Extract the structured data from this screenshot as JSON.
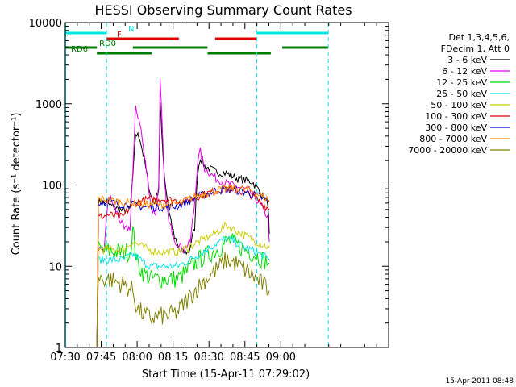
{
  "chart_data": {
    "type": "line",
    "title": "HESSI Observing Summary Count Rates",
    "xlabel": "Start Time (15-Apr-11 07:29:02)",
    "ylabel": "Count Rate (s⁻¹ detector⁻¹)",
    "y_scale": "log",
    "ylim": [
      1,
      10000
    ],
    "xlim_minutes": [
      7.5,
      9.75
    ],
    "x_ticks": [
      "07:30",
      "07:45",
      "08:00",
      "08:15",
      "08:30",
      "08:45",
      "09:00"
    ],
    "y_ticks": [
      "1",
      "10",
      "100",
      "1000",
      "10000"
    ],
    "legend_header": [
      "Det 1,3,4,5,6,",
      "FDecim 1, Att 0"
    ],
    "timestamp": "15-Apr-2011 08:48",
    "flags": [
      {
        "label": "N",
        "color": "#00e5e5",
        "segments": [
          [
            7.5,
            7.787
          ],
          [
            8.833,
            9.33
          ]
        ]
      },
      {
        "label": "F",
        "color": "#e00000",
        "segments": [
          [
            7.787,
            8.29
          ],
          [
            8.543,
            8.833
          ]
        ]
      },
      {
        "label": "RD0",
        "color": "#007a00",
        "segments": [
          [
            7.5,
            7.72
          ],
          [
            7.97,
            8.49
          ],
          [
            9.01,
            9.33
          ]
        ]
      },
      {
        "label": "RD6",
        "color": "#007a00",
        "segments": [
          [
            7.72,
            8.1
          ],
          [
            8.49,
            8.93
          ]
        ]
      }
    ],
    "vlines": [
      7.5,
      7.787,
      8.833,
      9.33
    ],
    "series": [
      {
        "name": "3 - 6 keV",
        "color": "#000000",
        "points": [
          [
            7.72,
            1
          ],
          [
            7.73,
            63
          ],
          [
            7.78,
            60
          ],
          [
            7.85,
            52
          ],
          [
            7.9,
            48
          ],
          [
            7.95,
            52
          ],
          [
            7.97,
            120
          ],
          [
            7.99,
            430
          ],
          [
            8.02,
            380
          ],
          [
            8.05,
            200
          ],
          [
            8.08,
            100
          ],
          [
            8.1,
            70
          ],
          [
            8.12,
            60
          ],
          [
            8.15,
            90
          ],
          [
            8.16,
            1000
          ],
          [
            8.17,
            480
          ],
          [
            8.19,
            130
          ],
          [
            8.22,
            50
          ],
          [
            8.26,
            22
          ],
          [
            8.3,
            15
          ],
          [
            8.36,
            15
          ],
          [
            8.4,
            30
          ],
          [
            8.42,
            140
          ],
          [
            8.44,
            220
          ],
          [
            8.47,
            170
          ],
          [
            8.55,
            145
          ],
          [
            8.62,
            140
          ],
          [
            8.7,
            120
          ],
          [
            8.8,
            110
          ],
          [
            8.85,
            85
          ],
          [
            8.91,
            60
          ],
          [
            8.92,
            25
          ]
        ]
      },
      {
        "name": "6 - 12 keV",
        "color": "#e000e0",
        "points": [
          [
            7.72,
            1
          ],
          [
            7.73,
            15
          ],
          [
            7.77,
            16
          ],
          [
            7.8,
            75
          ],
          [
            7.83,
            60
          ],
          [
            7.86,
            45
          ],
          [
            7.91,
            28
          ],
          [
            7.95,
            30
          ],
          [
            7.97,
            150
          ],
          [
            7.99,
            860
          ],
          [
            8.02,
            600
          ],
          [
            8.05,
            230
          ],
          [
            8.08,
            95
          ],
          [
            8.1,
            50
          ],
          [
            8.13,
            45
          ],
          [
            8.15,
            100
          ],
          [
            8.16,
            1900
          ],
          [
            8.17,
            800
          ],
          [
            8.19,
            100
          ],
          [
            8.22,
            35
          ],
          [
            8.27,
            20
          ],
          [
            8.32,
            16
          ],
          [
            8.37,
            20
          ],
          [
            8.4,
            60
          ],
          [
            8.42,
            190
          ],
          [
            8.44,
            260
          ],
          [
            8.47,
            160
          ],
          [
            8.55,
            120
          ],
          [
            8.62,
            105
          ],
          [
            8.7,
            95
          ],
          [
            8.78,
            85
          ],
          [
            8.85,
            60
          ],
          [
            8.91,
            40
          ],
          [
            8.92,
            20
          ]
        ]
      },
      {
        "name": "12 - 25 keV",
        "color": "#00dd00",
        "points": [
          [
            7.72,
            1
          ],
          [
            7.73,
            16
          ],
          [
            7.85,
            15
          ],
          [
            7.95,
            15
          ],
          [
            7.97,
            28
          ],
          [
            8.0,
            11
          ],
          [
            8.05,
            8
          ],
          [
            8.1,
            7
          ],
          [
            8.16,
            7
          ],
          [
            8.22,
            7
          ],
          [
            8.28,
            7
          ],
          [
            8.33,
            8
          ],
          [
            8.38,
            10
          ],
          [
            8.43,
            12
          ],
          [
            8.5,
            14
          ],
          [
            8.58,
            17
          ],
          [
            8.63,
            21
          ],
          [
            8.68,
            19
          ],
          [
            8.75,
            16
          ],
          [
            8.82,
            14
          ],
          [
            8.88,
            12
          ],
          [
            8.92,
            11
          ]
        ]
      },
      {
        "name": "25 - 50 keV",
        "color": "#00e5e5",
        "points": [
          [
            7.72,
            1
          ],
          [
            7.73,
            12
          ],
          [
            7.8,
            12
          ],
          [
            7.9,
            12
          ],
          [
            7.97,
            14
          ],
          [
            8.0,
            13
          ],
          [
            8.05,
            11
          ],
          [
            8.1,
            10
          ],
          [
            8.2,
            10
          ],
          [
            8.28,
            10
          ],
          [
            8.33,
            11
          ],
          [
            8.4,
            13
          ],
          [
            8.48,
            16
          ],
          [
            8.55,
            19
          ],
          [
            8.62,
            22
          ],
          [
            8.68,
            20
          ],
          [
            8.75,
            17
          ],
          [
            8.83,
            15
          ],
          [
            8.92,
            12
          ]
        ]
      },
      {
        "name": "50 - 100 keV",
        "color": "#cccc00",
        "points": [
          [
            7.72,
            1
          ],
          [
            7.73,
            16
          ],
          [
            7.8,
            16
          ],
          [
            7.9,
            16
          ],
          [
            7.97,
            20
          ],
          [
            8.02,
            18
          ],
          [
            8.08,
            16
          ],
          [
            8.15,
            15
          ],
          [
            8.22,
            15
          ],
          [
            8.28,
            15
          ],
          [
            8.35,
            17
          ],
          [
            8.45,
            21
          ],
          [
            8.55,
            26
          ],
          [
            8.62,
            32
          ],
          [
            8.68,
            28
          ],
          [
            8.75,
            24
          ],
          [
            8.83,
            20
          ],
          [
            8.92,
            17
          ]
        ]
      },
      {
        "name": "100 - 300 keV",
        "color": "#e00000",
        "points": [
          [
            7.72,
            1
          ],
          [
            7.73,
            40
          ],
          [
            7.8,
            43
          ],
          [
            7.9,
            40
          ],
          [
            7.97,
            60
          ],
          [
            8.05,
            65
          ],
          [
            8.15,
            68
          ],
          [
            8.25,
            65
          ],
          [
            8.32,
            62
          ],
          [
            8.4,
            70
          ],
          [
            8.5,
            80
          ],
          [
            8.6,
            90
          ],
          [
            8.7,
            85
          ],
          [
            8.8,
            75
          ],
          [
            8.92,
            50
          ]
        ]
      },
      {
        "name": "300 - 800 keV",
        "color": "#0000cc",
        "points": [
          [
            7.72,
            1
          ],
          [
            7.73,
            60
          ],
          [
            7.8,
            63
          ],
          [
            7.88,
            58
          ],
          [
            7.95,
            58
          ],
          [
            8.0,
            55
          ],
          [
            8.1,
            53
          ],
          [
            8.2,
            53
          ],
          [
            8.28,
            55
          ],
          [
            8.35,
            62
          ],
          [
            8.45,
            75
          ],
          [
            8.55,
            85
          ],
          [
            8.65,
            88
          ],
          [
            8.75,
            82
          ],
          [
            8.85,
            72
          ],
          [
            8.92,
            62
          ]
        ]
      },
      {
        "name": "800 - 7000 keV",
        "color": "#ff8800",
        "points": [
          [
            7.72,
            1
          ],
          [
            7.73,
            68
          ],
          [
            7.8,
            66
          ],
          [
            7.88,
            62
          ],
          [
            7.95,
            60
          ],
          [
            8.05,
            58
          ],
          [
            8.15,
            57
          ],
          [
            8.25,
            58
          ],
          [
            8.32,
            62
          ],
          [
            8.4,
            72
          ],
          [
            8.5,
            82
          ],
          [
            8.6,
            90
          ],
          [
            8.7,
            92
          ],
          [
            8.8,
            85
          ],
          [
            8.92,
            65
          ]
        ]
      },
      {
        "name": "7000 - 20000 keV",
        "color": "#808000",
        "points": [
          [
            7.72,
            1
          ],
          [
            7.73,
            7
          ],
          [
            7.8,
            7
          ],
          [
            7.9,
            6
          ],
          [
            7.97,
            5
          ],
          [
            8.0,
            3
          ],
          [
            8.05,
            2.5
          ],
          [
            8.1,
            2.3
          ],
          [
            8.15,
            2.4
          ],
          [
            8.22,
            2.5
          ],
          [
            8.28,
            2.7
          ],
          [
            8.33,
            3.5
          ],
          [
            8.4,
            5
          ],
          [
            8.48,
            7
          ],
          [
            8.55,
            9
          ],
          [
            8.62,
            12
          ],
          [
            8.68,
            11
          ],
          [
            8.75,
            9
          ],
          [
            8.83,
            7
          ],
          [
            8.92,
            5
          ]
        ]
      }
    ]
  }
}
